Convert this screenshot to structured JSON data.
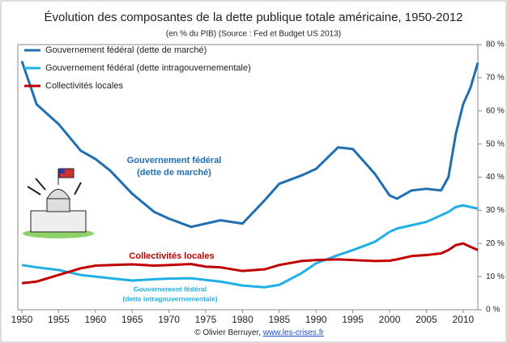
{
  "chart_data": {
    "type": "line",
    "title": "Évolution des composantes de la dette publique totale américaine, 1950-2012",
    "subtitle": "(en % du PIB) (Source : Fed et Budget US 2013)",
    "x": [
      1950,
      1952,
      1955,
      1958,
      1960,
      1962,
      1965,
      1968,
      1970,
      1973,
      1975,
      1977,
      1980,
      1983,
      1985,
      1988,
      1990,
      1993,
      1995,
      1998,
      2000,
      2001,
      2003,
      2005,
      2007,
      2008,
      2009,
      2010,
      2011,
      2012
    ],
    "series": [
      {
        "name": "Gouvernement fédéral (dette de marché)",
        "color": "#1f6fb2",
        "values": [
          75,
          62,
          56,
          48,
          45.5,
          42,
          35,
          29.5,
          27.5,
          25,
          26,
          27,
          26,
          33,
          38,
          40.5,
          42.5,
          49,
          48.5,
          41,
          34.5,
          33.5,
          36,
          36.5,
          36,
          40,
          53,
          62,
          67,
          74.5
        ]
      },
      {
        "name": "Gouvernement fédéral (dette intragouvernementale)",
        "color": "#1fb0e8",
        "values": [
          13.5,
          12.8,
          12,
          10.5,
          10,
          9.5,
          8.8,
          9.2,
          9.4,
          9.5,
          9,
          8.5,
          7.3,
          6.8,
          7.5,
          11,
          14,
          16.5,
          18,
          20.5,
          23.5,
          24.5,
          25.5,
          26.5,
          28.5,
          29.5,
          31,
          31.5,
          31,
          30.5
        ]
      },
      {
        "name": "Collectivités locales",
        "color": "#c00000",
        "values": [
          8,
          8.5,
          10.5,
          12.5,
          13.3,
          13.5,
          13.7,
          13.3,
          13.5,
          13.8,
          13,
          12.8,
          11.7,
          12.2,
          13.5,
          14.7,
          15,
          15.2,
          15,
          14.7,
          14.8,
          15.2,
          16.2,
          16.5,
          17,
          18,
          19.5,
          20,
          19,
          18
        ]
      }
    ],
    "xlim": [
      1950,
      2012
    ],
    "xticks": [
      1950,
      1955,
      1960,
      1965,
      1970,
      1975,
      1980,
      1985,
      1990,
      1995,
      2000,
      2005,
      2010
    ],
    "ylim": [
      0,
      80
    ],
    "yticks": [
      {
        "value": 0,
        "label": "0 %"
      },
      {
        "value": 10,
        "label": "10 %"
      },
      {
        "value": 20,
        "label": "20 %"
      },
      {
        "value": 30,
        "label": "30 %"
      },
      {
        "value": 40,
        "label": "40 %"
      },
      {
        "value": 50,
        "label": "50 %"
      },
      {
        "value": 60,
        "label": "60 %"
      },
      {
        "value": 70,
        "label": "70 %"
      },
      {
        "value": 80,
        "label": "80 %"
      }
    ],
    "legend": "upper left",
    "annotations": [
      {
        "lines": [
          "Gouvernement fédéral",
          "(dette de marché)"
        ],
        "color": "#1f6fb2"
      },
      {
        "lines": [
          "Collectivités locales"
        ],
        "color": "#c00000"
      },
      {
        "lines": [
          "Gouvernement fédéral",
          "(dette intragouvernementale)"
        ],
        "color": "#1fb0e8"
      }
    ],
    "credit": "© Olivier Berruyer, ",
    "credit_link": "www.les-crises.fr"
  }
}
